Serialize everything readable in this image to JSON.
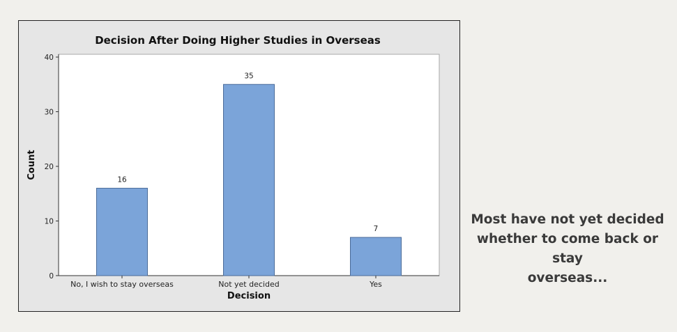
{
  "chart_data": {
    "type": "bar",
    "title": "Decision After Doing Higher Studies in Overseas",
    "xlabel": "Decision",
    "ylabel": "Count",
    "categories": [
      "No, I wish to stay overseas",
      "Not yet decided",
      "Yes"
    ],
    "values": [
      16,
      35,
      7
    ],
    "data_labels": [
      "16",
      "35",
      "7"
    ],
    "yticks": [
      0,
      10,
      20,
      30,
      40
    ],
    "ytick_labels": [
      "0",
      "10",
      "20",
      "30",
      "40"
    ],
    "ylim": [
      0,
      40
    ],
    "grid": false,
    "colors": {
      "bar_fill": "#7ba4d9",
      "bar_stroke": "#4a6b99",
      "plot_background": "#ffffff",
      "frame_background": "#e6e6e6"
    }
  },
  "caption": {
    "lines": [
      "Most have not yet decided",
      "whether to come back or stay",
      "overseas..."
    ]
  }
}
